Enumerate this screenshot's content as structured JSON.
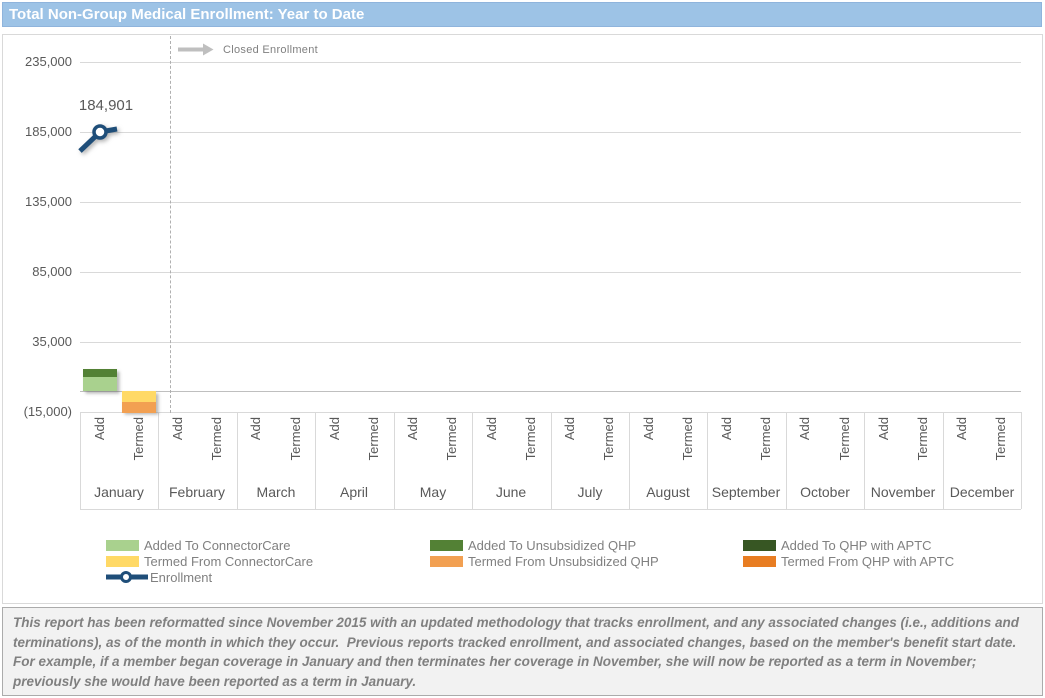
{
  "title": "Total Non-Group Medical Enrollment: Year to Date",
  "colors": {
    "title_bar": "#9DC3E6",
    "title_text": "#FFFFFF",
    "axis_text": "#595959",
    "legend_text": "#808080",
    "gridline": "#D9D9D9",
    "zero_line": "#BFBFBF",
    "dashed_line": "#B0B0B0",
    "annotation_arrow": "#BFBFBF",
    "annotation_text": "#808080",
    "footer_bg": "#F2F2F2",
    "footer_text": "#808080"
  },
  "chart_data": {
    "type": "bar",
    "subtype": "stacked-columns-with-line",
    "title": "Total Non-Group Medical Enrollment: Year to Date",
    "categories": [
      "January",
      "February",
      "March",
      "April",
      "May",
      "June",
      "July",
      "August",
      "September",
      "October",
      "November",
      "December"
    ],
    "sub_categories": [
      "Add",
      "Termed"
    ],
    "ylim": [
      -15000,
      235000
    ],
    "y_ticks": [
      {
        "label": "235,000",
        "value": 235000
      },
      {
        "label": "185,000",
        "value": 185000
      },
      {
        "label": "135,000",
        "value": 135000
      },
      {
        "label": "85,000",
        "value": 85000
      },
      {
        "label": "35,000",
        "value": 35000
      },
      {
        "label": "(15,000)",
        "value": -15000
      }
    ],
    "grid": true,
    "legend_position": "bottom",
    "point_label": "184,901",
    "annotation": {
      "label": "Closed Enrollment",
      "type": "vertical-dashed-line-with-right-arrow",
      "after_category": "January"
    },
    "series": [
      {
        "name": "Added To ConnectorCare",
        "type": "bar",
        "stack": "Add",
        "color": "#A9D18E",
        "values": [
          10000,
          0,
          0,
          0,
          0,
          0,
          0,
          0,
          0,
          0,
          0,
          0
        ]
      },
      {
        "name": "Added To Unsubsidized QHP",
        "type": "bar",
        "stack": "Add",
        "color": "#538135",
        "values": [
          5700,
          0,
          0,
          0,
          0,
          0,
          0,
          0,
          0,
          0,
          0,
          0
        ]
      },
      {
        "name": "Added To QHP with APTC",
        "type": "bar",
        "stack": "Add",
        "color": "#375623",
        "values": [
          0,
          0,
          0,
          0,
          0,
          0,
          0,
          0,
          0,
          0,
          0,
          0
        ]
      },
      {
        "name": "Termed From ConnectorCare",
        "type": "bar",
        "stack": "Termed",
        "color": "#FFD966",
        "values": [
          -7500,
          0,
          0,
          0,
          0,
          0,
          0,
          0,
          0,
          0,
          0,
          0
        ]
      },
      {
        "name": "Termed From Unsubsidized QHP",
        "type": "bar",
        "stack": "Termed",
        "color": "#F2A052",
        "values": [
          -7500,
          0,
          0,
          0,
          0,
          0,
          0,
          0,
          0,
          0,
          0,
          0
        ]
      },
      {
        "name": "Termed From QHP with APTC",
        "type": "bar",
        "stack": "Termed",
        "color": "#E87D22",
        "values": [
          0,
          0,
          0,
          0,
          0,
          0,
          0,
          0,
          0,
          0,
          0,
          0
        ]
      },
      {
        "name": "Enrollment",
        "type": "line",
        "color": "#1F4E79",
        "values": [
          184901,
          null,
          null,
          null,
          null,
          null,
          null,
          null,
          null,
          null,
          null,
          null
        ]
      }
    ],
    "legend_columns": [
      [
        0,
        3,
        6
      ],
      [
        1,
        4
      ],
      [
        2,
        5
      ]
    ]
  },
  "footer": {
    "text": "This report has been reformatted since November 2015 with an updated methodology that tracks enrollment, and any associated changes (i.e., additions and terminations), as of the month in which they occur.  Previous reports tracked enrollment, and associated changes, based on the member's benefit start date.  For example, if a member began coverage in January and then terminates her coverage in November, she will now be reported as a term in November; previously she would have been reported as a term in January."
  }
}
